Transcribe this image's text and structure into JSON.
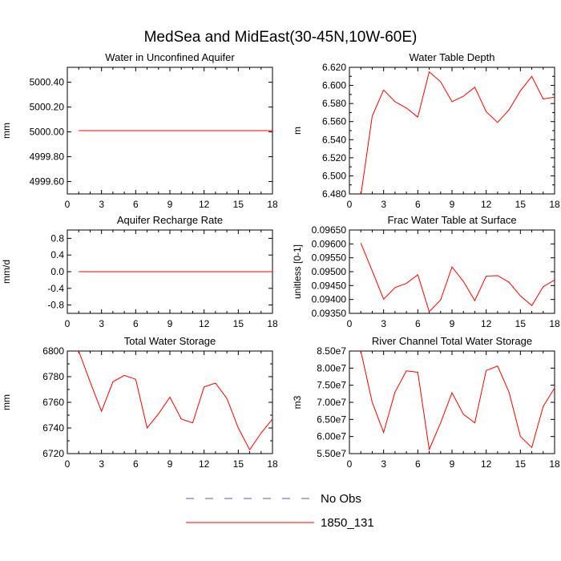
{
  "figure": {
    "title": "MedSea and MidEast(30-45N,10W-60E)"
  },
  "legend": {
    "entries": [
      {
        "label": "No Obs",
        "style": "dashed",
        "color": "#5b5bb5"
      },
      {
        "label": "1850_131",
        "style": "solid",
        "color": "#ff0000"
      }
    ]
  },
  "chart_data": [
    {
      "type": "line",
      "title": "Water in Unconfined Aquifer",
      "ylabel": "mm",
      "xlim": [
        0,
        18
      ],
      "ylim": [
        4999.5,
        5000.52
      ],
      "xticks": [
        0,
        3,
        6,
        9,
        12,
        15,
        18
      ],
      "yticks": [
        4999.6,
        4999.8,
        5000.0,
        5000.2,
        5000.4
      ],
      "ytick_labels": [
        "4999.60",
        "4999.80",
        "5000.00",
        "5000.20",
        "5000.40"
      ],
      "series": [
        {
          "name": "1850_131",
          "color": "#ff0000",
          "x": [
            1,
            18
          ],
          "y": [
            5000.01,
            5000.01
          ]
        }
      ]
    },
    {
      "type": "line",
      "title": "Water Table Depth",
      "ylabel": "m",
      "xlim": [
        0,
        18
      ],
      "ylim": [
        6.48,
        6.62
      ],
      "xticks": [
        0,
        3,
        6,
        9,
        12,
        15,
        18
      ],
      "yticks": [
        6.48,
        6.49,
        6.5,
        6.51,
        6.52,
        6.53,
        6.54,
        6.55,
        6.56,
        6.57,
        6.58,
        6.59,
        6.6,
        6.61,
        6.62
      ],
      "ytick_labels": [
        "6.480",
        "",
        "6.500",
        "",
        "6.520",
        "",
        "6.540",
        "",
        "6.560",
        "",
        "6.580",
        "",
        "6.600",
        "",
        "6.620"
      ],
      "series": [
        {
          "name": "1850_131",
          "color": "#ff0000",
          "x": [
            1,
            2,
            3,
            4,
            5,
            6,
            7,
            8,
            9,
            10,
            11,
            12,
            13,
            14,
            15,
            16,
            17,
            18
          ],
          "y": [
            6.478,
            6.566,
            6.595,
            6.582,
            6.575,
            6.565,
            6.615,
            6.604,
            6.582,
            6.588,
            6.598,
            6.571,
            6.559,
            6.573,
            6.594,
            6.61,
            6.585,
            6.587
          ]
        }
      ]
    },
    {
      "type": "line",
      "title": "Aquifer Recharge Rate",
      "ylabel": "mm/d",
      "xlim": [
        0,
        18
      ],
      "ylim": [
        -1.0,
        1.0
      ],
      "xticks": [
        0,
        3,
        6,
        9,
        12,
        15,
        18
      ],
      "yticks": [
        -0.8,
        -0.4,
        0.0,
        0.4,
        0.8
      ],
      "ytick_labels": [
        "-0.8",
        "-0.4",
        "0.0",
        "0.4",
        "0.8"
      ],
      "series": [
        {
          "name": "1850_131",
          "color": "#ff0000",
          "x": [
            1,
            18
          ],
          "y": [
            0.0,
            0.0
          ]
        }
      ]
    },
    {
      "type": "line",
      "title": "Frac Water Table at Surface",
      "ylabel": "unitless [0-1]",
      "xlim": [
        0,
        18
      ],
      "ylim": [
        0.0935,
        0.0965
      ],
      "xticks": [
        0,
        3,
        6,
        9,
        12,
        15,
        18
      ],
      "yticks": [
        0.0935,
        0.094,
        0.0945,
        0.095,
        0.0955,
        0.096,
        0.0965
      ],
      "ytick_labels": [
        "0.09350",
        "0.09400",
        "0.09450",
        "0.09500",
        "0.09550",
        "0.09600",
        "0.09650"
      ],
      "series": [
        {
          "name": "1850_131",
          "color": "#ff0000",
          "x": [
            1,
            2,
            3,
            4,
            5,
            6,
            7,
            8,
            9,
            10,
            11,
            12,
            13,
            14,
            15,
            16,
            17,
            18
          ],
          "y": [
            0.09603,
            0.09503,
            0.09401,
            0.09443,
            0.09458,
            0.09489,
            0.09356,
            0.09398,
            0.09517,
            0.09465,
            0.09396,
            0.09484,
            0.09486,
            0.09462,
            0.09413,
            0.09378,
            0.09446,
            0.0947
          ]
        }
      ]
    },
    {
      "type": "line",
      "title": "Total Water Storage",
      "ylabel": "mm",
      "xlim": [
        0,
        18
      ],
      "ylim": [
        6720,
        6800
      ],
      "xticks": [
        0,
        3,
        6,
        9,
        12,
        15,
        18
      ],
      "yticks": [
        6720,
        6730,
        6740,
        6750,
        6760,
        6770,
        6780,
        6790,
        6800
      ],
      "ytick_labels": [
        "6720",
        "",
        "6740",
        "",
        "6760",
        "",
        "6780",
        "",
        "6800"
      ],
      "series": [
        {
          "name": "1850_131",
          "color": "#ff0000",
          "x": [
            1,
            2,
            3,
            4,
            5,
            6,
            7,
            8,
            9,
            10,
            11,
            12,
            13,
            14,
            15,
            16,
            17,
            18
          ],
          "y": [
            6800,
            6776,
            6753,
            6776,
            6781,
            6778,
            6740,
            6751,
            6764,
            6747,
            6744,
            6772,
            6775,
            6763,
            6740,
            6723,
            6736,
            6747
          ]
        }
      ]
    },
    {
      "type": "line",
      "title": "River Channel Total Water Storage",
      "ylabel": "m3",
      "xlim": [
        0,
        18
      ],
      "ylim": [
        55000000.0,
        85000000.0
      ],
      "xticks": [
        0,
        3,
        6,
        9,
        12,
        15,
        18
      ],
      "yticks": [
        55000000.0,
        60000000.0,
        65000000.0,
        70000000.0,
        75000000.0,
        80000000.0,
        85000000.0
      ],
      "ytick_labels": [
        "5.50e7",
        "6.00e7",
        "6.50e7",
        "7.00e7",
        "7.50e7",
        "8.00e7",
        "8.50e7"
      ],
      "series": [
        {
          "name": "1850_131",
          "color": "#ff0000",
          "x": [
            1,
            2,
            3,
            4,
            5,
            6,
            7,
            8,
            9,
            10,
            11,
            12,
            13,
            14,
            15,
            16,
            17,
            18
          ],
          "y": [
            85000000.0,
            70000000.0,
            61200000.0,
            73000000.0,
            79200000.0,
            78800000.0,
            56200000.0,
            64000000.0,
            72800000.0,
            66500000.0,
            64000000.0,
            79300000.0,
            80600000.0,
            73000000.0,
            60000000.0,
            56800000.0,
            68800000.0,
            74200000.0
          ]
        }
      ]
    }
  ]
}
